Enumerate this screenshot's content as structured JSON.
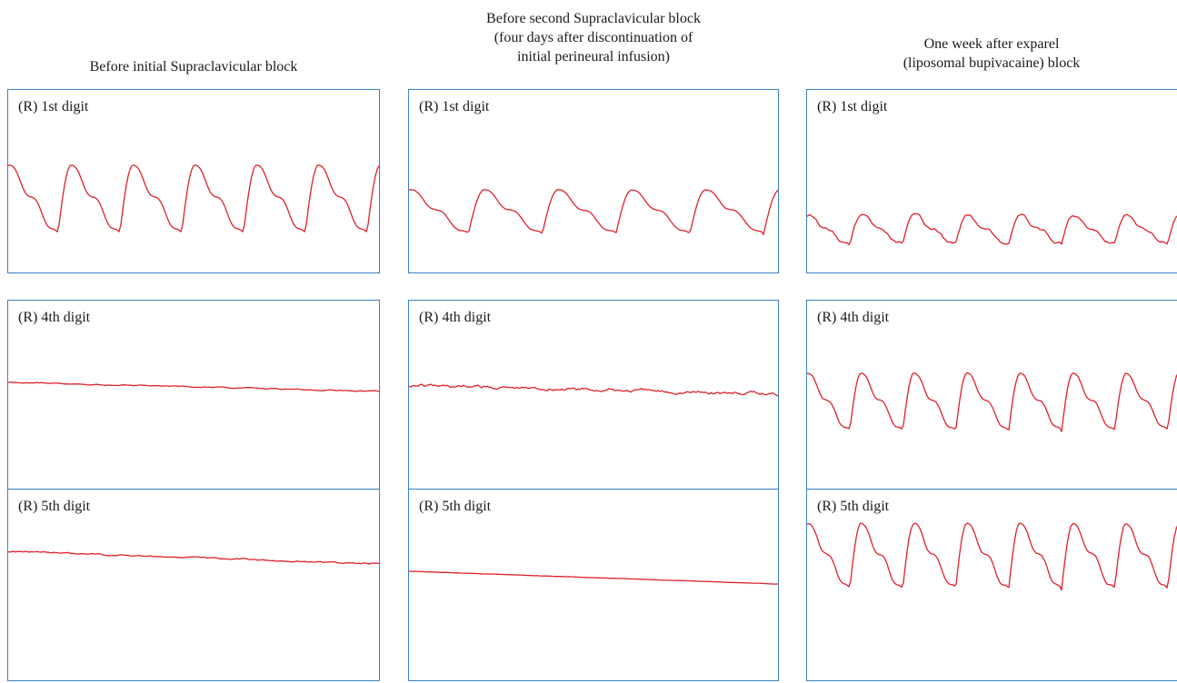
{
  "chart_data": {
    "type": "line",
    "columns": [
      {
        "title": "Before initial Supraclavicular block",
        "traces": [
          {
            "label": "(R) 1st digit",
            "pattern": "pulsatile",
            "amplitude": 0.75,
            "cycles": 6,
            "noise": 0
          },
          {
            "label": "(R) 4th digit",
            "pattern": "flat",
            "amplitude": 0.03,
            "cycles": 0,
            "noise": 0.3
          },
          {
            "label": "(R) 5th digit",
            "pattern": "flat",
            "amplitude": 0.04,
            "cycles": 0,
            "noise": 0.4
          }
        ]
      },
      {
        "title": "Before second Supraclavicular block\n(four days after discontinuation of\ninitial perineural infusion)",
        "traces": [
          {
            "label": "(R) 1st digit",
            "pattern": "pulsatile",
            "amplitude": 0.48,
            "cycles": 5,
            "noise": 0.2
          },
          {
            "label": "(R) 4th digit",
            "pattern": "flat",
            "amplitude": 0.04,
            "cycles": 0,
            "noise": 1.0
          },
          {
            "label": "(R) 5th digit",
            "pattern": "flat",
            "amplitude": 0.03,
            "cycles": 0,
            "noise": 0.1
          }
        ]
      },
      {
        "title": "One week after exparel\n(liposomal bupivacaine) block",
        "traces": [
          {
            "label": "(R) 1st digit",
            "pattern": "pulsatile",
            "amplitude": 0.32,
            "cycles": 7,
            "noise": 0.8
          },
          {
            "label": "(R) 4th digit",
            "pattern": "pulsatile",
            "amplitude": 0.63,
            "cycles": 7,
            "noise": 0.3
          },
          {
            "label": "(R) 5th digit",
            "pattern": "pulsatile",
            "amplitude": 0.72,
            "cycles": 7,
            "noise": 0.4
          }
        ]
      }
    ],
    "line_color": "#e0202a",
    "frame_color": "#3a7fc1",
    "grid": false
  }
}
